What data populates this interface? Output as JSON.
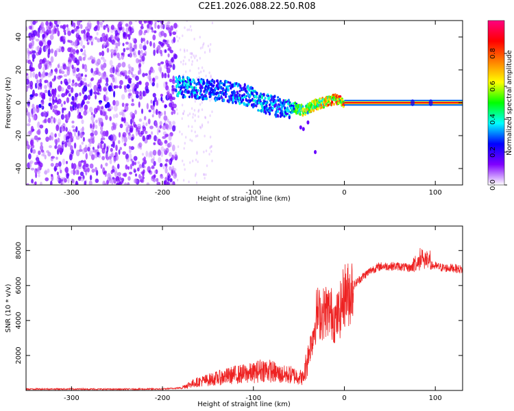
{
  "title": "C2E1.2026.088.22.50.R08",
  "chart_data": [
    {
      "type": "heatmap",
      "xlabel": "Height of straight line (km)",
      "ylabel": "Frequency (Hz)",
      "xlim": [
        -350,
        130
      ],
      "ylim": [
        -50,
        50
      ],
      "xticks": [
        -300,
        -200,
        -100,
        0,
        100
      ],
      "yticks": [
        -40,
        -20,
        0,
        20,
        40
      ],
      "colorbar": {
        "label": "Normalized spectral amplitude",
        "range": [
          0,
          1
        ],
        "ticks": [
          0.0,
          0.2,
          0.4,
          0.6,
          0.8
        ],
        "colormap": [
          "#ffffff",
          "#8000ff",
          "#0000ff",
          "#00ffff",
          "#00ff00",
          "#ffff00",
          "#ff8000",
          "#ff0000",
          "#ff0080"
        ]
      },
      "noise_region_x": [
        -350,
        -185
      ],
      "signal_track": [
        {
          "x": -185,
          "f": 10,
          "amp": 0.35
        },
        {
          "x": -170,
          "f": 9,
          "amp": 0.35
        },
        {
          "x": -150,
          "f": 8,
          "amp": 0.3
        },
        {
          "x": -130,
          "f": 7,
          "amp": 0.3
        },
        {
          "x": -110,
          "f": 5,
          "amp": 0.35
        },
        {
          "x": -90,
          "f": 0,
          "amp": 0.35
        },
        {
          "x": -70,
          "f": -3,
          "amp": 0.3
        },
        {
          "x": -55,
          "f": -3,
          "amp": 0.45
        },
        {
          "x": -45,
          "f": -5,
          "amp": 0.6
        },
        {
          "x": -35,
          "f": -2,
          "amp": 0.6
        },
        {
          "x": -20,
          "f": 1,
          "amp": 0.7
        },
        {
          "x": -10,
          "f": 2,
          "amp": 0.75
        },
        {
          "x": 0,
          "f": 0,
          "amp": 0.9
        },
        {
          "x": 50,
          "f": 0,
          "amp": 0.9
        },
        {
          "x": 100,
          "f": 0,
          "amp": 0.9
        },
        {
          "x": 130,
          "f": 0,
          "amp": 0.9
        }
      ]
    },
    {
      "type": "line",
      "xlabel": "Height of straight line (km)",
      "ylabel": "SNR (10 * v/v)",
      "xlim": [
        -350,
        130
      ],
      "ylim": [
        0,
        9400
      ],
      "xticks": [
        -300,
        -200,
        -100,
        0,
        100
      ],
      "yticks": [
        2000,
        4000,
        6000,
        8000
      ],
      "color": "#ee2222",
      "series": [
        {
          "x": [
            -350,
            -300,
            -250,
            -200,
            -180,
            -170,
            -160,
            -140,
            -120,
            -100,
            -90,
            -80,
            -70,
            -60,
            -50,
            -45,
            -40,
            -35,
            -30,
            -25,
            -20,
            -15,
            -10,
            -5,
            0,
            5,
            10,
            20,
            30,
            40,
            50,
            60,
            70,
            80,
            85,
            90,
            100,
            110,
            120,
            130
          ],
          "values": [
            80,
            80,
            70,
            80,
            150,
            350,
            500,
            700,
            900,
            1000,
            1200,
            1100,
            900,
            900,
            800,
            700,
            2000,
            3000,
            4500,
            4300,
            4600,
            4500,
            4000,
            4500,
            5500,
            5500,
            6000,
            6500,
            6900,
            7100,
            7100,
            7100,
            7000,
            7100,
            7500,
            7200,
            7100,
            7000,
            7000,
            6900
          ]
        }
      ]
    }
  ]
}
